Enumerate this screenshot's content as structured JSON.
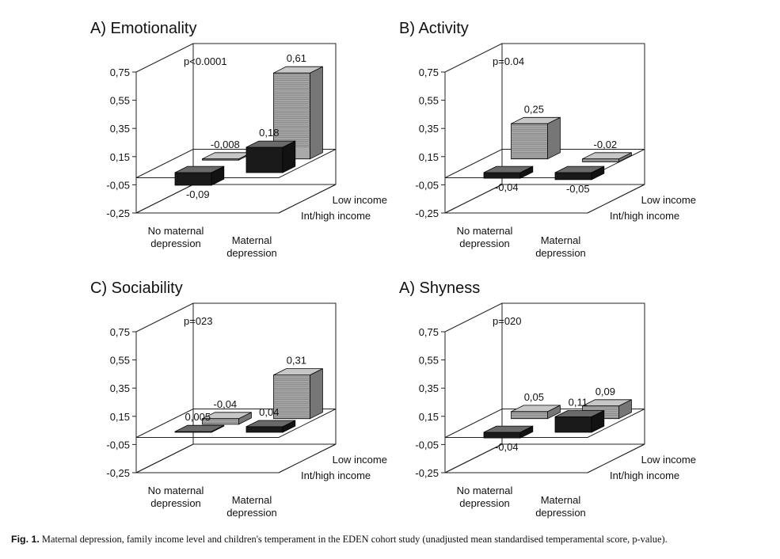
{
  "caption": {
    "label": "Fig. 1.",
    "text": "Maternal depression, family income level and children's temperament in the EDEN cohort study (unadjusted mean standardised temperamental score, p-value)."
  },
  "colors": {
    "low_income_bar": "#a9a9a9",
    "int_high_income_bar": "#1a1a1a",
    "axis": "#222222"
  },
  "chart_data": [
    {
      "type": "bar3d",
      "title": "A) Emotionality",
      "pvalue": "p<0.0001",
      "ylim": [
        -0.25,
        0.75
      ],
      "y_ticks": [
        "0,75",
        "0,55",
        "0,35",
        "0,15",
        "-0,05",
        "-0,25"
      ],
      "categories": [
        "No maternal\ndepression",
        "Maternal\ndepression"
      ],
      "series": [
        {
          "name": "Low income",
          "values": [
            -0.008,
            0.61
          ],
          "labels": [
            "-0,008",
            "0,61"
          ]
        },
        {
          "name": "Int/high income",
          "values": [
            -0.09,
            0.18
          ],
          "labels": [
            "-0,09",
            "0,18"
          ]
        }
      ]
    },
    {
      "type": "bar3d",
      "title": "B) Activity",
      "pvalue": "p=0.04",
      "ylim": [
        -0.25,
        0.75
      ],
      "y_ticks": [
        "0,75",
        "0,55",
        "0,35",
        "0,15",
        "-0,05",
        "-0,25"
      ],
      "categories": [
        "No maternal\ndepression",
        "Maternal\ndepression"
      ],
      "series": [
        {
          "name": "Low income",
          "values": [
            0.25,
            -0.02
          ],
          "labels": [
            "0,25",
            "-0,02"
          ]
        },
        {
          "name": "Int/high income",
          "values": [
            -0.04,
            -0.05
          ],
          "labels": [
            "-0,04",
            "-0,05"
          ]
        }
      ]
    },
    {
      "type": "bar3d",
      "title": "C) Sociability",
      "pvalue": "p=023",
      "ylim": [
        -0.25,
        0.75
      ],
      "y_ticks": [
        "0,75",
        "0,55",
        "0,35",
        "0,15",
        "-0,05",
        "-0,25"
      ],
      "categories": [
        "No maternal\ndepression",
        "Maternal\ndepression"
      ],
      "series": [
        {
          "name": "Low income",
          "values": [
            -0.04,
            0.31
          ],
          "labels": [
            "-0,04",
            "0,31"
          ]
        },
        {
          "name": "Int/high income",
          "values": [
            0.005,
            0.04
          ],
          "labels": [
            "0,005",
            "0,04"
          ]
        }
      ]
    },
    {
      "type": "bar3d",
      "title": "A) Shyness",
      "pvalue": "p=020",
      "ylim": [
        -0.25,
        0.75
      ],
      "y_ticks": [
        "0,75",
        "0,55",
        "0,35",
        "0,15",
        "-0,05",
        "-0,25"
      ],
      "categories": [
        "No maternal\ndepression",
        "Maternal\ndepression"
      ],
      "series": [
        {
          "name": "Low income",
          "values": [
            0.05,
            0.09
          ],
          "labels": [
            "0,05",
            "0,09"
          ]
        },
        {
          "name": "Int/high income",
          "values": [
            -0.04,
            0.11
          ],
          "labels": [
            "-0,04",
            "0,11"
          ]
        }
      ]
    }
  ]
}
